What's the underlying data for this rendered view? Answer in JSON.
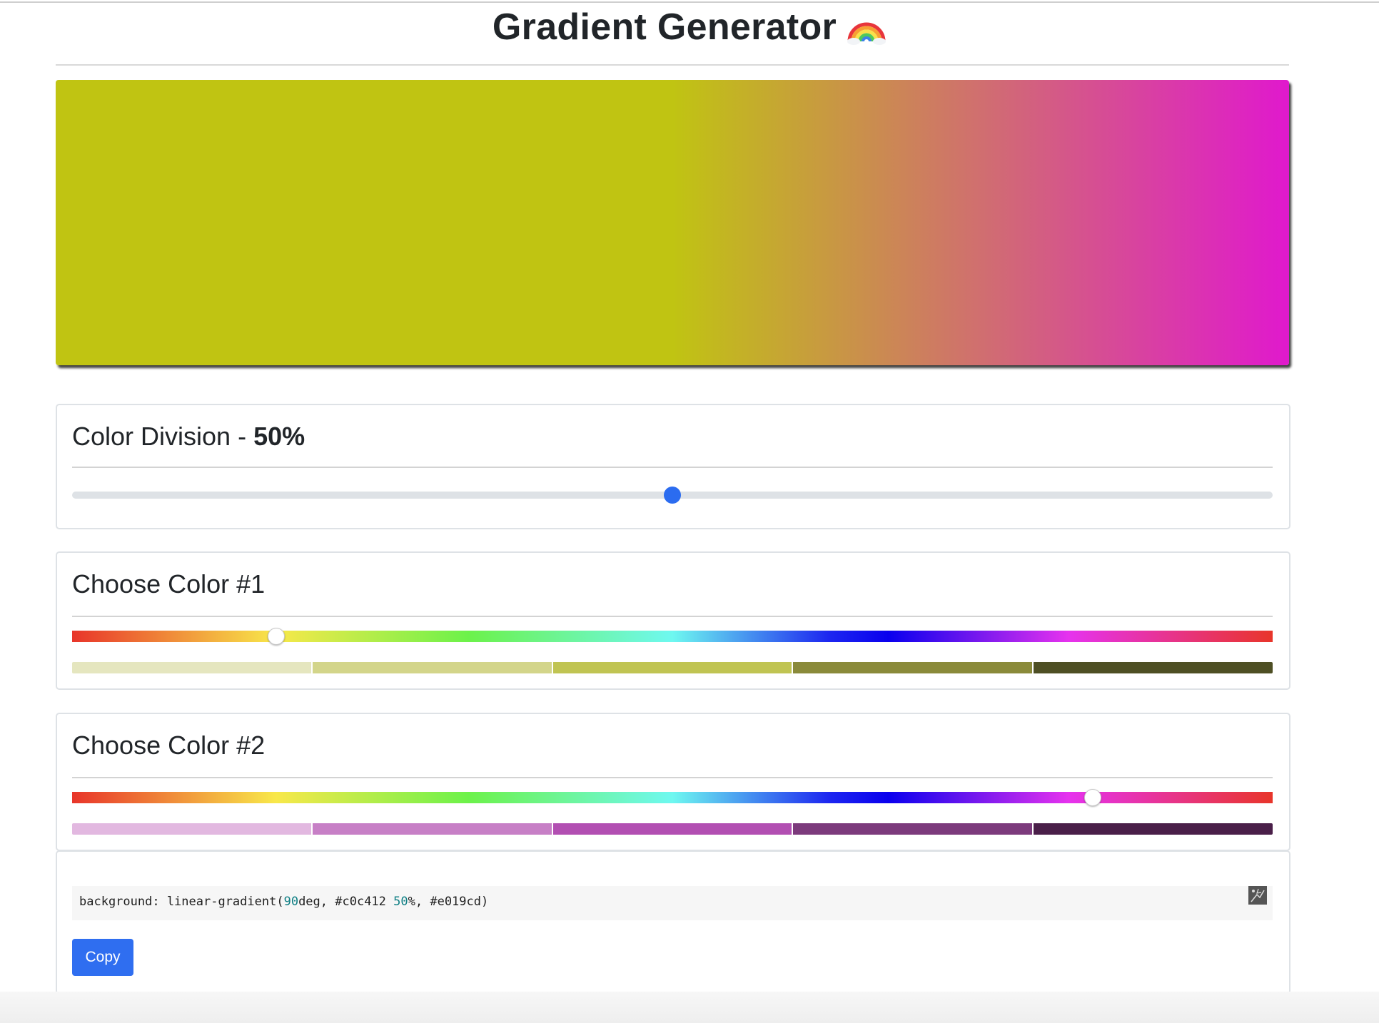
{
  "header": {
    "title": "Gradient Generator"
  },
  "preview": {
    "angle_deg": 90,
    "color1": "#c0c412",
    "color2": "#e019cd",
    "division_percent": 50
  },
  "division": {
    "label": "Color Division - ",
    "value_label": "50%",
    "value": 50,
    "min": 0,
    "max": 100
  },
  "color1": {
    "label": "Choose Color #1",
    "hue_position_percent": 17,
    "shades": [
      "#e5e6bf",
      "#d3d58a",
      "#c0c452",
      "#8a8a3a",
      "#4e4f24"
    ]
  },
  "color2": {
    "label": "Choose Color #2",
    "hue_position_percent": 85,
    "shades": [
      "#e2b8e0",
      "#c77fc6",
      "#b24fb2",
      "#7c3a7c",
      "#4a1f49"
    ]
  },
  "css_output": {
    "prefix": "background: linear-gradient(",
    "angle_value": "90",
    "angle_unit": "deg, ",
    "color1_text": "#c0c412 ",
    "stop_value": "50",
    "stop_unit": "%, ",
    "color2_text": "#e019cd)",
    "copy_label": "Copy"
  }
}
